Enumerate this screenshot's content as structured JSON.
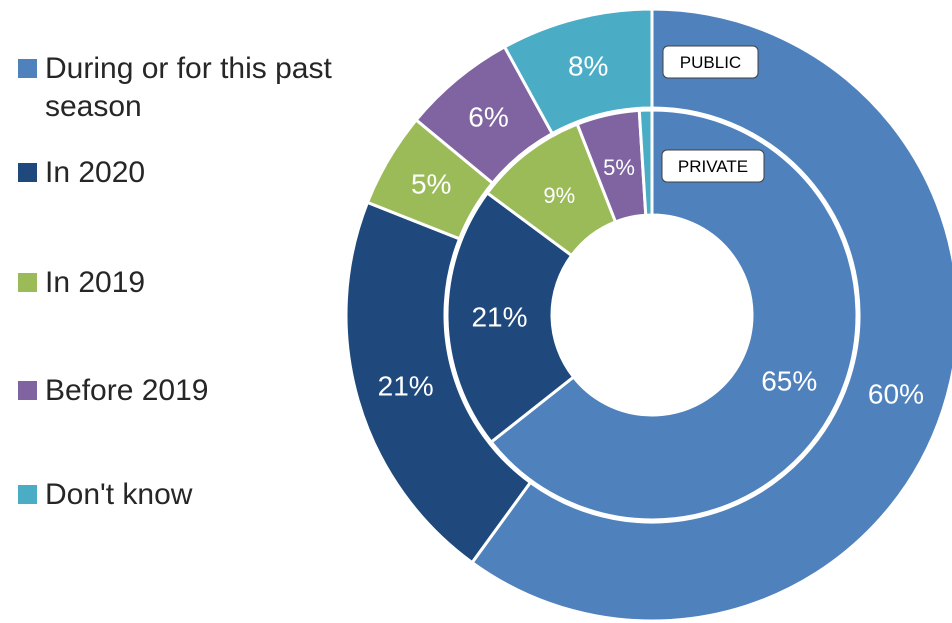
{
  "chart_data": {
    "type": "donut",
    "categories": [
      "During or for this past season",
      "In 2020",
      "In 2019",
      "Before 2019",
      "Don't know"
    ],
    "colors": [
      "#4F81BD",
      "#1F497D",
      "#9BBB59",
      "#8064A2",
      "#4BACC6"
    ],
    "legend_position": "left",
    "series": [
      {
        "name": "PUBLIC",
        "ring": "outer",
        "values": [
          60,
          21,
          5,
          6,
          8
        ],
        "labels": [
          "60%",
          "21%",
          "5%",
          "6%",
          "8%"
        ]
      },
      {
        "name": "PRIVATE",
        "ring": "inner",
        "values": [
          65,
          21,
          9,
          5,
          1
        ],
        "labels": [
          "65%",
          "21%",
          "9%",
          "5%",
          ""
        ]
      }
    ]
  }
}
